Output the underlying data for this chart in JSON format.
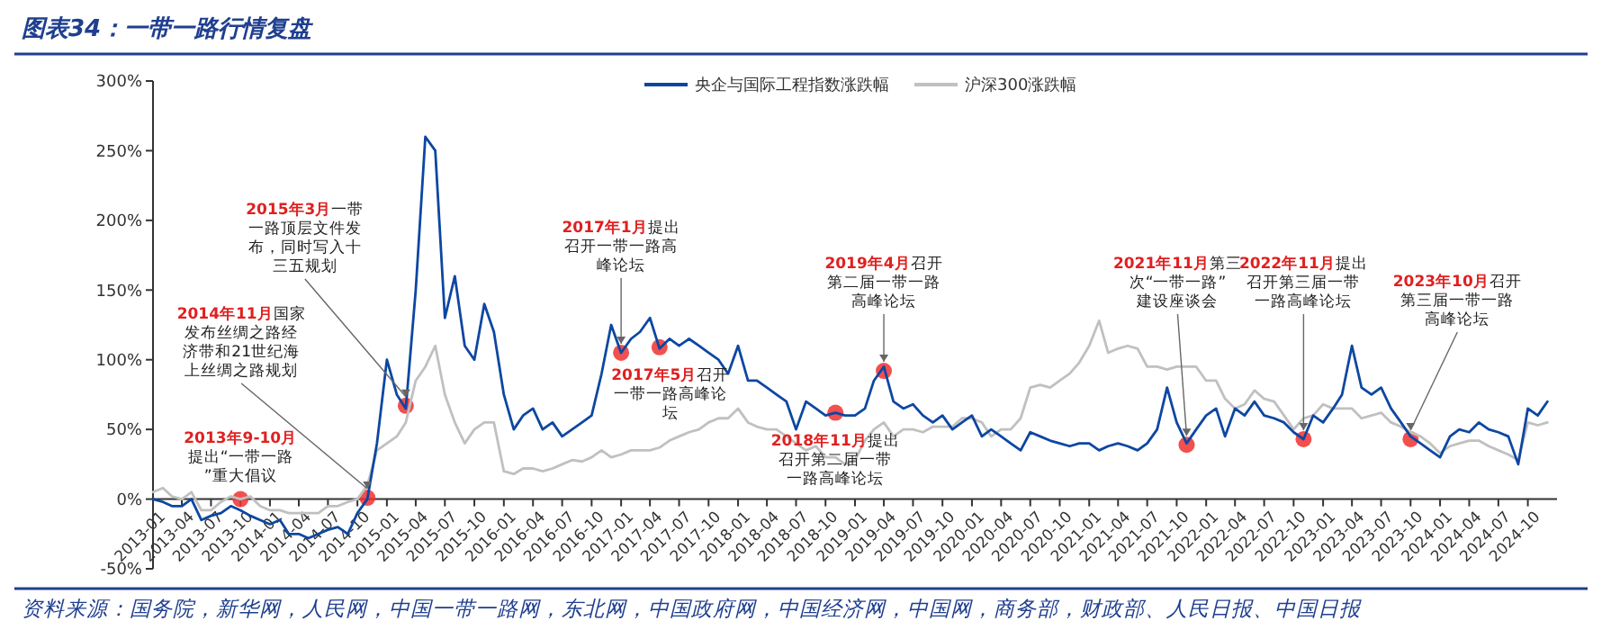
{
  "chart_data": {
    "type": "line",
    "title": "图表34：一带一路行情复盘",
    "x": [
      "2013-01",
      "2013-02",
      "2013-03",
      "2013-04",
      "2013-05",
      "2013-06",
      "2013-07",
      "2013-08",
      "2013-09",
      "2013-10",
      "2013-11",
      "2013-12",
      "2014-01",
      "2014-02",
      "2014-03",
      "2014-04",
      "2014-05",
      "2014-06",
      "2014-07",
      "2014-08",
      "2014-09",
      "2014-10",
      "2014-11",
      "2014-12",
      "2015-01",
      "2015-02",
      "2015-03",
      "2015-04",
      "2015-05",
      "2015-06",
      "2015-07",
      "2015-08",
      "2015-09",
      "2015-10",
      "2015-11",
      "2015-12",
      "2016-01",
      "2016-02",
      "2016-03",
      "2016-04",
      "2016-05",
      "2016-06",
      "2016-07",
      "2016-08",
      "2016-09",
      "2016-10",
      "2016-11",
      "2016-12",
      "2017-01",
      "2017-02",
      "2017-03",
      "2017-04",
      "2017-05",
      "2017-06",
      "2017-07",
      "2017-08",
      "2017-09",
      "2017-10",
      "2017-11",
      "2017-12",
      "2018-01",
      "2018-02",
      "2018-03",
      "2018-04",
      "2018-05",
      "2018-06",
      "2018-07",
      "2018-08",
      "2018-09",
      "2018-10",
      "2018-11",
      "2018-12",
      "2019-01",
      "2019-02",
      "2019-03",
      "2019-04",
      "2019-05",
      "2019-06",
      "2019-07",
      "2019-08",
      "2019-09",
      "2019-10",
      "2019-11",
      "2019-12",
      "2020-01",
      "2020-02",
      "2020-03",
      "2020-04",
      "2020-05",
      "2020-06",
      "2020-07",
      "2020-08",
      "2020-09",
      "2020-10",
      "2020-11",
      "2020-12",
      "2021-01",
      "2021-02",
      "2021-03",
      "2021-04",
      "2021-05",
      "2021-06",
      "2021-07",
      "2021-08",
      "2021-09",
      "2021-10",
      "2021-11",
      "2021-12",
      "2022-01",
      "2022-02",
      "2022-03",
      "2022-04",
      "2022-05",
      "2022-06",
      "2022-07",
      "2022-08",
      "2022-09",
      "2022-10",
      "2022-11",
      "2022-12",
      "2023-01",
      "2023-02",
      "2023-03",
      "2023-04",
      "2023-05",
      "2023-06",
      "2023-07",
      "2023-08",
      "2023-09",
      "2023-10",
      "2023-11",
      "2023-12",
      "2024-01",
      "2024-02",
      "2024-03",
      "2024-04",
      "2024-05",
      "2024-06",
      "2024-07",
      "2024-08",
      "2024-09",
      "2024-10",
      "2024-11",
      "2024-12"
    ],
    "series": [
      {
        "name": "央企与国际工程指数涨跌幅",
        "color": "#0d47a1",
        "values": [
          0,
          -2,
          -5,
          -5,
          0,
          -15,
          -12,
          -10,
          -5,
          -8,
          -12,
          -15,
          -18,
          -15,
          -25,
          -25,
          -28,
          -25,
          -22,
          -20,
          -25,
          -10,
          0,
          40,
          100,
          75,
          65,
          150,
          260,
          250,
          130,
          160,
          110,
          100,
          140,
          120,
          75,
          50,
          60,
          65,
          50,
          55,
          45,
          50,
          55,
          60,
          90,
          125,
          105,
          115,
          120,
          130,
          108,
          115,
          110,
          115,
          110,
          105,
          100,
          90,
          110,
          85,
          85,
          80,
          75,
          70,
          50,
          70,
          65,
          60,
          62,
          60,
          60,
          65,
          85,
          95,
          70,
          65,
          68,
          60,
          55,
          60,
          50,
          55,
          60,
          45,
          50,
          45,
          40,
          35,
          48,
          45,
          42,
          40,
          38,
          40,
          40,
          35,
          38,
          40,
          38,
          35,
          40,
          50,
          80,
          55,
          40,
          50,
          60,
          65,
          45,
          65,
          60,
          70,
          60,
          58,
          55,
          48,
          43,
          60,
          55,
          65,
          75,
          110,
          80,
          75,
          80,
          65,
          55,
          45,
          40,
          35,
          30,
          45,
          50,
          48,
          55,
          50,
          48,
          45,
          25,
          65,
          60,
          70
        ]
      },
      {
        "name": "沪深300涨跌幅",
        "color": "#c0c0c0",
        "values": [
          5,
          8,
          2,
          0,
          5,
          -8,
          -8,
          -2,
          2,
          0,
          2,
          -5,
          -8,
          -8,
          -10,
          -10,
          -10,
          -10,
          -5,
          -5,
          -2,
          0,
          10,
          35,
          40,
          45,
          55,
          85,
          95,
          110,
          75,
          55,
          40,
          50,
          55,
          55,
          20,
          18,
          22,
          22,
          20,
          22,
          25,
          28,
          27,
          30,
          35,
          30,
          32,
          35,
          35,
          35,
          37,
          42,
          45,
          48,
          50,
          55,
          58,
          58,
          65,
          55,
          52,
          50,
          50,
          45,
          40,
          35,
          38,
          30,
          30,
          25,
          28,
          42,
          50,
          55,
          45,
          50,
          50,
          48,
          52,
          52,
          52,
          58,
          58,
          55,
          45,
          50,
          50,
          58,
          80,
          82,
          80,
          85,
          90,
          98,
          110,
          128,
          105,
          108,
          110,
          108,
          95,
          95,
          93,
          95,
          95,
          95,
          85,
          85,
          72,
          65,
          68,
          78,
          72,
          70,
          60,
          50,
          58,
          60,
          68,
          65,
          65,
          65,
          58,
          60,
          62,
          55,
          52,
          48,
          45,
          40,
          33,
          38,
          40,
          42,
          42,
          38,
          35,
          32,
          28,
          55,
          53,
          55
        ]
      }
    ],
    "xlim": [
      "2013-01-01",
      "2024-12-31"
    ],
    "xticks": [
      "2013-01",
      "2013-04",
      "2013-07",
      "2013-10",
      "2014-01",
      "2014-04",
      "2014-07",
      "2014-10",
      "2015-01",
      "2015-04",
      "2015-07",
      "2015-10",
      "2016-01",
      "2016-04",
      "2016-07",
      "2016-10",
      "2017-01",
      "2017-04",
      "2017-07",
      "2017-10",
      "2018-01",
      "2018-04",
      "2018-07",
      "2018-10",
      "2019-01",
      "2019-04",
      "2019-07",
      "2019-10",
      "2020-01",
      "2020-04",
      "2020-07",
      "2020-10",
      "2021-01",
      "2021-04",
      "2021-07",
      "2021-10",
      "2022-01",
      "2022-04",
      "2022-07",
      "2022-10",
      "2023-01",
      "2023-04",
      "2023-07",
      "2023-10",
      "2024-01",
      "2024-04",
      "2024-07",
      "2024-10"
    ],
    "ylim": [
      -50,
      300
    ],
    "yticks": [
      {
        "value": -50,
        "label": "-50%"
      },
      {
        "value": 0,
        "label": "0%"
      },
      {
        "value": 50,
        "label": "50%"
      },
      {
        "value": 100,
        "label": "100%"
      },
      {
        "value": 150,
        "label": "150%"
      },
      {
        "value": 200,
        "label": "200%"
      },
      {
        "value": 250,
        "label": "250%"
      },
      {
        "value": 300,
        "label": "300%"
      }
    ],
    "legend": "top right",
    "annotations": [
      {
        "text": "2013年9-10月提出“一带一路”重大倡议",
        "x": "2013-10",
        "y": 0
      },
      {
        "text": "2014年11月国家发布丝绸之路经济带和21世纪海上丝绸之路规划",
        "x": "2014-11",
        "y": 1
      },
      {
        "text": "2015年3月一带一路顶层文件发布，同时写入十三五规划",
        "x": "2015-03",
        "y": 67
      },
      {
        "text": "2017年1月提出召开一带一路高峰论坛",
        "x": "2017-01",
        "y": 105
      },
      {
        "text": "2017年5月召开一带一路高峰论坛",
        "x": "2017-05",
        "y": 109
      },
      {
        "text": "2018年11月提出召开第二届一带一路高峰论坛",
        "x": "2018-11",
        "y": 62
      },
      {
        "text": "2019年4月召开第二届一带一路高峰论坛",
        "x": "2019-04",
        "y": 92
      },
      {
        "text": "2021年11月第三次“一带一路”建设座谈会",
        "x": "2021-11",
        "y": 39
      },
      {
        "text": "2022年11月提出召开第三届一带一路高峰论坛",
        "x": "2022-11",
        "y": 43
      },
      {
        "text": "2023年10月召开第三届一带一路高峰论坛",
        "x": "2023-10",
        "y": 43
      },
      "资料来源：国务院，新华网，人民网，中国一带一路网，东北网，中国政府网，中国经济网，中国网，商务部，财政部、人民日报、中国日报"
    ]
  }
}
